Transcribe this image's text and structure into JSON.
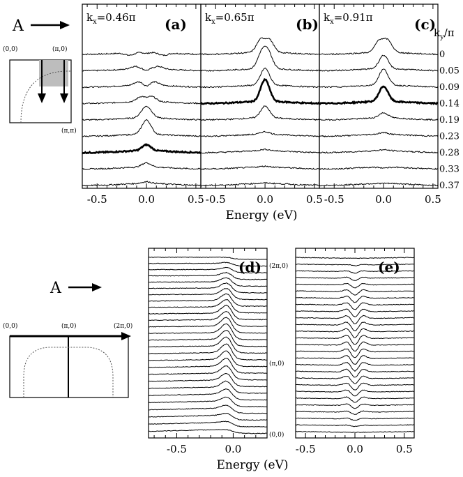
{
  "figure": {
    "arrow_label_top": "A",
    "arrow_label_bottom": "A",
    "top_xlabel": "Energy (eV)",
    "bottom_xlabel": "Energy (eV)",
    "ky_header": "k",
    "ky_header_sub": "y",
    "ky_header_suffix": "/π",
    "inset_top": {
      "corner_00": "(0,0)",
      "corner_pi0": "(π,0)",
      "corner_pipi": "(π,π)"
    },
    "inset_bottom": {
      "corner_00": "(0,0)",
      "corner_pi0": "(π,0)",
      "corner_2pi0": "(2π,0)"
    },
    "panel_e_labels": {
      "top": "(2π,0)",
      "mid": "(π,0)",
      "bottom": "(0,0)"
    }
  },
  "chart_data": [
    {
      "type": "line",
      "panel": "(a)",
      "kx_label": "k",
      "kx_sub": "x",
      "kx_value": "=0.46π",
      "xlabel": "Energy (eV)",
      "xlim": [
        -0.65,
        0.55
      ],
      "xticks": [
        "-0.5",
        "0.0",
        "0.5"
      ],
      "series": [
        {
          "ky": "0",
          "bold": false,
          "peaks": [
            [
              -0.17,
              -0.3
            ],
            [
              0.17,
              -0.3
            ]
          ],
          "dip": 0.3
        },
        {
          "ky": "0.05",
          "bold": false,
          "peaks": [
            [
              -0.12,
              0.3
            ],
            [
              0.12,
              0.3
            ]
          ],
          "dip": 0.5
        },
        {
          "ky": "0.09",
          "bold": false,
          "peaks": [
            [
              -0.08,
              0.4
            ],
            [
              0.08,
              0.4
            ]
          ],
          "dip": 0.6
        },
        {
          "ky": "0.14",
          "bold": false,
          "peaks": [
            [
              -0.05,
              0.6
            ],
            [
              0.05,
              0.6
            ]
          ],
          "dip": 0.4
        },
        {
          "ky": "0.19",
          "bold": false,
          "peaks": [
            [
              -0.02,
              0.8
            ],
            [
              0.02,
              0.8
            ]
          ],
          "dip": 0.2
        },
        {
          "ky": "0.23",
          "bold": false,
          "peaks": [
            [
              0.0,
              1.7
            ]
          ],
          "dip": 0
        },
        {
          "ky": "0.28",
          "bold": true,
          "peaks": [
            [
              0.0,
              0.7
            ]
          ],
          "dip": 0
        },
        {
          "ky": "0.33",
          "bold": false,
          "peaks": [
            [
              0.0,
              0.5
            ]
          ],
          "dip": 0
        },
        {
          "ky": "0.37",
          "bold": false,
          "peaks": [
            [
              0.0,
              0.2
            ]
          ],
          "dip": 0
        }
      ]
    },
    {
      "type": "line",
      "panel": "(b)",
      "kx_label": "k",
      "kx_sub": "x",
      "kx_value": "=0.65π",
      "xlabel": "Energy (eV)",
      "xlim": [
        -0.65,
        0.55
      ],
      "xticks": [
        "-0.5",
        "0.0",
        "0.5"
      ],
      "series": [
        {
          "ky": "0",
          "bold": false,
          "peaks": [
            [
              -0.04,
              1.5
            ],
            [
              0.04,
              1.5
            ]
          ],
          "dip": 0.9
        },
        {
          "ky": "0.05",
          "bold": false,
          "peaks": [
            [
              -0.03,
              1.8
            ],
            [
              0.03,
              1.8
            ]
          ],
          "dip": 0.6
        },
        {
          "ky": "0.09",
          "bold": false,
          "peaks": [
            [
              0.0,
              2.0
            ]
          ],
          "dip": 0
        },
        {
          "ky": "0.14",
          "bold": true,
          "peaks": [
            [
              0.0,
              2.6
            ]
          ],
          "dip": 0
        },
        {
          "ky": "0.19",
          "bold": false,
          "peaks": [
            [
              0.0,
              1.4
            ]
          ],
          "dip": 0
        },
        {
          "ky": "0.23",
          "bold": false,
          "peaks": [
            [
              0.0,
              0.3
            ]
          ],
          "dip": 0
        },
        {
          "ky": "0.28",
          "bold": false,
          "peaks": [
            [
              0.0,
              0.15
            ]
          ],
          "dip": 0
        },
        {
          "ky": "0.33",
          "bold": false,
          "peaks": [
            [
              0.0,
              0.1
            ]
          ],
          "dip": 0
        },
        {
          "ky": "0.37",
          "bold": false,
          "peaks": [
            [
              0.0,
              0.05
            ]
          ],
          "dip": 0
        }
      ]
    },
    {
      "type": "line",
      "panel": "(c)",
      "kx_label": "k",
      "kx_sub": "x",
      "kx_value": "=0.91π",
      "xlabel": "Energy (eV)",
      "xlim": [
        -0.65,
        0.55
      ],
      "xticks": [
        "-0.5",
        "0.0",
        "0.5"
      ],
      "series": [
        {
          "ky": "0",
          "bold": false,
          "peaks": [
            [
              -0.04,
              1.4
            ],
            [
              0.04,
              1.4
            ]
          ],
          "dip": 0.7
        },
        {
          "ky": "0.05",
          "bold": false,
          "peaks": [
            [
              0.0,
              1.6
            ]
          ],
          "dip": 0
        },
        {
          "ky": "0.09",
          "bold": false,
          "peaks": [
            [
              0.0,
              1.9
            ]
          ],
          "dip": 0
        },
        {
          "ky": "0.14",
          "bold": true,
          "peaks": [
            [
              0.0,
              1.8
            ]
          ],
          "dip": 0
        },
        {
          "ky": "0.19",
          "bold": false,
          "peaks": [
            [
              0.0,
              0.6
            ]
          ],
          "dip": 0
        },
        {
          "ky": "0.23",
          "bold": false,
          "peaks": [
            [
              0.0,
              0.2
            ]
          ],
          "dip": 0
        },
        {
          "ky": "0.28",
          "bold": false,
          "peaks": [
            [
              0.0,
              0.1
            ]
          ],
          "dip": 0
        },
        {
          "ky": "0.33",
          "bold": false,
          "peaks": [
            [
              0.0,
              -0.1
            ]
          ],
          "dip": 0
        },
        {
          "ky": "0.37",
          "bold": false,
          "peaks": [
            [
              0.0,
              0.0
            ]
          ],
          "dip": 0
        }
      ]
    },
    {
      "type": "line",
      "panel": "(d)",
      "xlabel": "Energy (eV)",
      "xlim": [
        -0.75,
        0.3
      ],
      "xticks": [
        "-0.5",
        "0.0"
      ],
      "n_curves": 27,
      "description_free": true
    },
    {
      "type": "line",
      "panel": "(e)",
      "xlabel": "Energy (eV)",
      "xlim": [
        -0.6,
        0.6
      ],
      "xticks": [
        "-0.5",
        "0.0",
        "0.5"
      ],
      "n_curves": 27
    }
  ]
}
